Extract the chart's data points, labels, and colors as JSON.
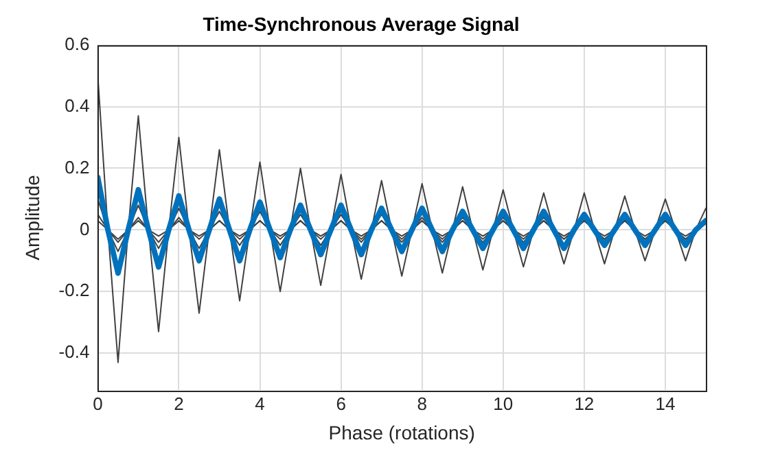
{
  "chart_data": {
    "type": "line",
    "title": "Time-Synchronous Average Signal",
    "xlabel": "Phase (rotations)",
    "ylabel": "Amplitude",
    "x": [
      0,
      0.25,
      0.5,
      0.75,
      1,
      1.25,
      1.5,
      1.75,
      2,
      2.25,
      2.5,
      2.75,
      3,
      3.25,
      3.5,
      3.75,
      4,
      4.25,
      4.5,
      4.75,
      5,
      5.25,
      5.5,
      5.75,
      6,
      6.25,
      6.5,
      6.75,
      7,
      7.25,
      7.5,
      7.75,
      8,
      8.25,
      8.5,
      8.75,
      9,
      9.25,
      9.5,
      9.75,
      10,
      10.25,
      10.5,
      10.75,
      11,
      11.25,
      11.5,
      11.75,
      12,
      12.25,
      12.5,
      12.75,
      13,
      13.25,
      13.5,
      13.75,
      14,
      14.25,
      14.5,
      14.75,
      15
    ],
    "series": [
      {
        "color": "#404040",
        "values": [
          0.5,
          0,
          -0.43,
          0,
          0.37,
          0,
          -0.33,
          0,
          0.3,
          0,
          -0.27,
          0,
          0.26,
          0,
          -0.23,
          0,
          0.22,
          0,
          -0.2,
          0,
          0.2,
          0,
          -0.18,
          0,
          0.18,
          0,
          -0.16,
          0,
          0.16,
          0,
          -0.15,
          0,
          0.15,
          0,
          -0.14,
          0,
          0.14,
          0,
          -0.13,
          0,
          0.13,
          0,
          -0.12,
          0,
          0.12,
          0,
          -0.11,
          0,
          0.12,
          0,
          -0.11,
          0,
          0.11,
          0,
          -0.1,
          0,
          0.1,
          0,
          -0.1,
          0,
          0.07
        ]
      },
      {
        "color": "#404040",
        "values": [
          0.1,
          0,
          -0.07,
          0,
          0.08,
          0,
          -0.06,
          0,
          0.07,
          0,
          -0.06,
          0,
          0.06,
          0,
          -0.05,
          0,
          0.06,
          0,
          -0.05,
          0,
          0.05,
          0,
          -0.05,
          0,
          0.05,
          0,
          -0.04,
          0,
          0.05,
          0,
          -0.04,
          0,
          0.04,
          0,
          -0.04,
          0,
          0.04,
          0,
          -0.04,
          0,
          0.04,
          0,
          -0.04,
          0,
          0.04,
          0,
          -0.03,
          0,
          0.04,
          0,
          -0.03,
          0,
          0.03,
          0,
          -0.03,
          0,
          0.03,
          0,
          -0.03,
          0,
          0.03
        ]
      },
      {
        "color": "#404040",
        "values": [
          0.05,
          0,
          -0.04,
          0,
          0.04,
          0,
          -0.04,
          0,
          0.04,
          0,
          -0.03,
          0,
          0.03,
          0,
          -0.03,
          0,
          0.03,
          0,
          -0.03,
          0,
          0.03,
          0,
          -0.03,
          0,
          0.03,
          0,
          -0.03,
          0,
          0.03,
          0,
          -0.03,
          0,
          0.03,
          0,
          -0.03,
          0,
          0.03,
          0,
          -0.03,
          0,
          0.03,
          0,
          -0.03,
          0,
          0.03,
          0,
          -0.03,
          0,
          0.03,
          0,
          -0.03,
          0,
          0.03,
          0,
          -0.03,
          0,
          0.03,
          0,
          -0.03,
          0,
          0.02
        ]
      },
      {
        "color": "#404040",
        "values": [
          0.03,
          0,
          -0.03,
          0,
          0.03,
          0,
          -0.02,
          0,
          0.03,
          0,
          -0.02,
          0,
          0.03,
          0,
          -0.02,
          0,
          0.03,
          0,
          -0.02,
          0,
          0.03,
          0,
          -0.02,
          0,
          0.03,
          0,
          -0.02,
          0,
          0.03,
          0,
          -0.02,
          0,
          0.03,
          0,
          -0.02,
          0,
          0.03,
          0,
          -0.02,
          0,
          0.03,
          0,
          -0.02,
          0,
          0.03,
          0,
          -0.02,
          0,
          0.03,
          0,
          -0.02,
          0,
          0.03,
          0,
          -0.02,
          0,
          0.03,
          0,
          -0.02,
          0,
          0.02
        ]
      },
      {
        "color": "#0072bd",
        "values": [
          0.17,
          0,
          -0.14,
          0,
          0.13,
          0,
          -0.12,
          0,
          0.11,
          0,
          -0.1,
          0,
          0.1,
          0,
          -0.1,
          0,
          0.09,
          0,
          -0.09,
          0,
          0.08,
          0,
          -0.08,
          0,
          0.08,
          0,
          -0.08,
          0,
          0.07,
          0,
          -0.07,
          0,
          0.07,
          0,
          -0.07,
          0,
          0.06,
          0,
          -0.06,
          0,
          0.06,
          0,
          -0.06,
          0,
          0.06,
          0,
          -0.06,
          0,
          0.05,
          0,
          -0.05,
          0,
          0.05,
          0,
          -0.05,
          0,
          0.05,
          0,
          -0.05,
          0,
          0.03
        ]
      }
    ],
    "xlim": [
      0,
      15
    ],
    "xticks": [
      0,
      2,
      4,
      6,
      8,
      10,
      12,
      14
    ],
    "ylim": [
      -0.52,
      0.6
    ],
    "yticks": [
      -0.4,
      -0.2,
      0,
      0.2,
      0.4,
      0.6
    ],
    "grid": true,
    "legend": false,
    "marker": "none",
    "line_style": "solid"
  }
}
